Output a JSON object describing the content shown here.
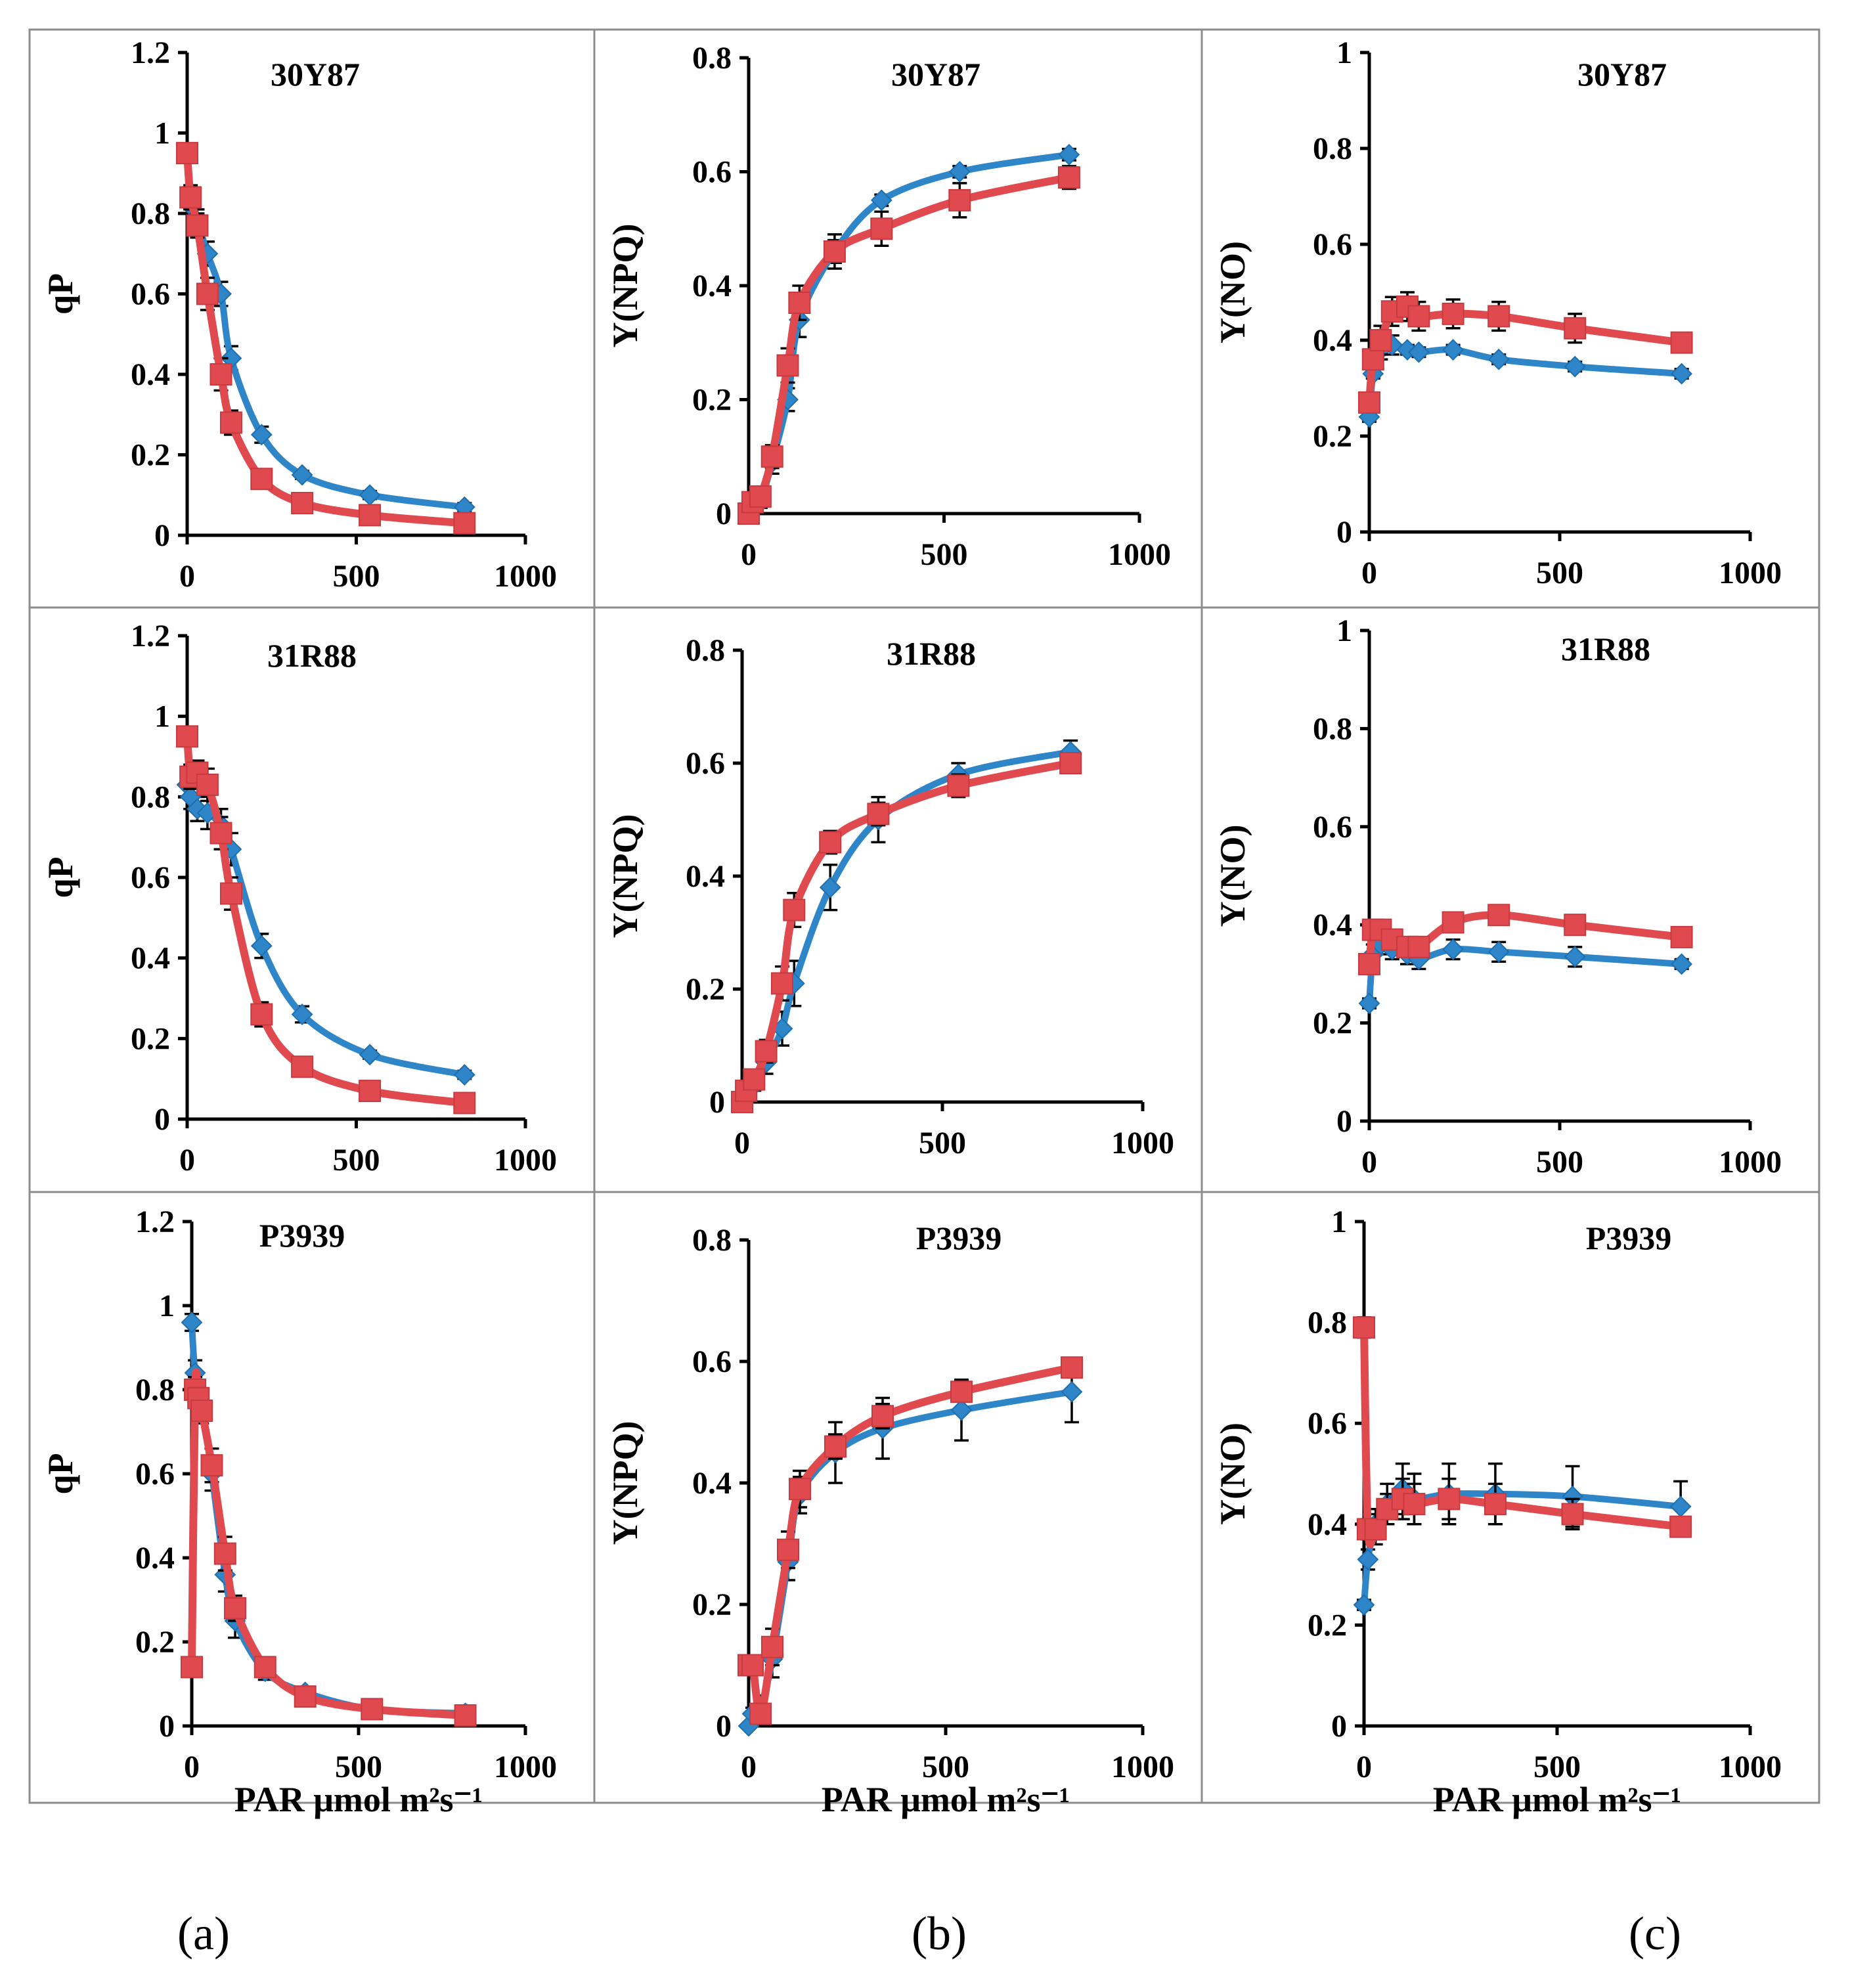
{
  "figure_labels": [
    "(a)",
    "(b)",
    "(c)"
  ],
  "colors": {
    "series_blue": "#2e86c9",
    "series_red": "#e04a4e"
  },
  "chart_data": [
    {
      "type": "line",
      "title": "30Y87",
      "ylabel": "qP",
      "xlabel": "",
      "xlim": [
        0,
        1000
      ],
      "xticks": [
        0,
        500,
        1000
      ],
      "ylim": [
        0,
        1.2
      ],
      "yticks": [
        "0",
        "0.2",
        "0.4",
        "0.6",
        "0.8",
        "1",
        "1.2"
      ],
      "series": [
        {
          "name": "blue",
          "x": [
            0,
            10,
            30,
            60,
            100,
            130,
            220,
            340,
            540,
            820
          ],
          "y": [
            0.95,
            0.82,
            0.78,
            0.7,
            0.6,
            0.44,
            0.25,
            0.15,
            0.1,
            0.07
          ],
          "err": [
            0.02,
            0.02,
            0.03,
            0.03,
            0.03,
            0.03,
            0.02,
            0.01,
            0.01,
            0.01
          ]
        },
        {
          "name": "red",
          "x": [
            0,
            10,
            30,
            60,
            100,
            130,
            220,
            340,
            540,
            820
          ],
          "y": [
            0.95,
            0.84,
            0.77,
            0.6,
            0.4,
            0.28,
            0.14,
            0.08,
            0.05,
            0.03
          ],
          "err": [
            0.02,
            0.03,
            0.03,
            0.04,
            0.04,
            0.03,
            0.02,
            0.01,
            0.01,
            0.01
          ]
        }
      ]
    },
    {
      "type": "line",
      "title": "30Y87",
      "ylabel": "Y(NPQ)",
      "xlabel": "",
      "xlim": [
        0,
        1000
      ],
      "xticks": [
        0,
        500,
        1000
      ],
      "ylim": [
        0,
        0.8
      ],
      "yticks": [
        "0",
        "0.2",
        "0.4",
        "0.6",
        "0.8"
      ],
      "series": [
        {
          "name": "blue",
          "x": [
            0,
            10,
            30,
            60,
            100,
            130,
            220,
            340,
            540,
            820
          ],
          "y": [
            0.0,
            0.01,
            0.02,
            0.09,
            0.2,
            0.34,
            0.46,
            0.55,
            0.6,
            0.63
          ],
          "err": [
            0.0,
            0.01,
            0.01,
            0.02,
            0.02,
            0.03,
            0.02,
            0.01,
            0.01,
            0.01
          ]
        },
        {
          "name": "red",
          "x": [
            0,
            10,
            30,
            60,
            100,
            130,
            220,
            340,
            540,
            820
          ],
          "y": [
            0.0,
            0.02,
            0.03,
            0.1,
            0.26,
            0.37,
            0.46,
            0.5,
            0.55,
            0.59
          ],
          "err": [
            0.0,
            0.01,
            0.01,
            0.02,
            0.03,
            0.03,
            0.03,
            0.03,
            0.03,
            0.02
          ]
        }
      ]
    },
    {
      "type": "line",
      "title": "30Y87",
      "ylabel": "Y(NO)",
      "xlabel": "",
      "xlim": [
        0,
        1000
      ],
      "xticks": [
        0,
        500,
        1000
      ],
      "ylim": [
        0,
        1
      ],
      "yticks": [
        "0",
        "0.2",
        "0.4",
        "0.6",
        "0.8",
        "1"
      ],
      "series": [
        {
          "name": "blue",
          "x": [
            0,
            10,
            30,
            60,
            100,
            130,
            220,
            340,
            540,
            820
          ],
          "y": [
            0.24,
            0.33,
            0.38,
            0.39,
            0.38,
            0.375,
            0.38,
            0.36,
            0.345,
            0.33
          ],
          "err": [
            0.01,
            0.01,
            0.02,
            0.02,
            0.01,
            0.01,
            0.01,
            0.01,
            0.01,
            0.01
          ]
        },
        {
          "name": "red",
          "x": [
            0,
            10,
            30,
            60,
            100,
            130,
            220,
            340,
            540,
            820
          ],
          "y": [
            0.27,
            0.36,
            0.4,
            0.46,
            0.47,
            0.45,
            0.455,
            0.45,
            0.425,
            0.395
          ],
          "err": [
            0.02,
            0.02,
            0.03,
            0.03,
            0.03,
            0.03,
            0.03,
            0.03,
            0.03,
            0.02
          ]
        }
      ]
    },
    {
      "type": "line",
      "title": "31R88",
      "ylabel": "qP",
      "xlabel": "",
      "xlim": [
        0,
        1000
      ],
      "xticks": [
        0,
        500,
        1000
      ],
      "ylim": [
        0,
        1.2
      ],
      "yticks": [
        "0",
        "0.2",
        "0.4",
        "0.6",
        "0.8",
        "1",
        "1.2"
      ],
      "series": [
        {
          "name": "blue",
          "x": [
            0,
            10,
            30,
            60,
            100,
            130,
            220,
            340,
            540,
            820
          ],
          "y": [
            0.83,
            0.8,
            0.77,
            0.76,
            0.73,
            0.67,
            0.43,
            0.26,
            0.16,
            0.11
          ],
          "err": [
            0.03,
            0.03,
            0.03,
            0.04,
            0.04,
            0.04,
            0.03,
            0.02,
            0.01,
            0.01
          ]
        },
        {
          "name": "red",
          "x": [
            0,
            10,
            30,
            60,
            100,
            130,
            220,
            340,
            540,
            820
          ],
          "y": [
            0.95,
            0.85,
            0.86,
            0.83,
            0.71,
            0.56,
            0.26,
            0.13,
            0.07,
            0.04
          ],
          "err": [
            0.02,
            0.03,
            0.03,
            0.04,
            0.04,
            0.04,
            0.03,
            0.02,
            0.01,
            0.01
          ]
        }
      ]
    },
    {
      "type": "line",
      "title": "31R88",
      "ylabel": "Y(NPQ)",
      "xlabel": "",
      "xlim": [
        0,
        1000
      ],
      "xticks": [
        0,
        500,
        1000
      ],
      "ylim": [
        0,
        0.8
      ],
      "yticks": [
        "0",
        "0.2",
        "0.4",
        "0.6",
        "0.8"
      ],
      "series": [
        {
          "name": "blue",
          "x": [
            0,
            10,
            30,
            60,
            100,
            130,
            220,
            340,
            540,
            820
          ],
          "y": [
            0.0,
            0.01,
            0.03,
            0.07,
            0.13,
            0.21,
            0.38,
            0.5,
            0.58,
            0.62
          ],
          "err": [
            0.0,
            0.01,
            0.01,
            0.02,
            0.03,
            0.04,
            0.04,
            0.04,
            0.02,
            0.02
          ]
        },
        {
          "name": "red",
          "x": [
            0,
            10,
            30,
            60,
            100,
            130,
            220,
            340,
            540,
            820
          ],
          "y": [
            0.0,
            0.02,
            0.04,
            0.09,
            0.21,
            0.34,
            0.46,
            0.51,
            0.56,
            0.6
          ],
          "err": [
            0.0,
            0.01,
            0.01,
            0.02,
            0.03,
            0.03,
            0.02,
            0.02,
            0.02,
            0.01
          ]
        }
      ]
    },
    {
      "type": "line",
      "title": "31R88",
      "ylabel": "Y(NO)",
      "xlabel": "",
      "xlim": [
        0,
        1000
      ],
      "xticks": [
        0,
        500,
        1000
      ],
      "ylim": [
        0,
        1
      ],
      "yticks": [
        "0",
        "0.2",
        "0.4",
        "0.6",
        "0.8",
        "1"
      ],
      "series": [
        {
          "name": "blue",
          "x": [
            0,
            10,
            30,
            60,
            100,
            130,
            220,
            340,
            540,
            820
          ],
          "y": [
            0.24,
            0.34,
            0.36,
            0.35,
            0.34,
            0.33,
            0.35,
            0.345,
            0.335,
            0.32
          ],
          "err": [
            0.01,
            0.02,
            0.02,
            0.02,
            0.02,
            0.02,
            0.02,
            0.02,
            0.02,
            0.01
          ]
        },
        {
          "name": "red",
          "x": [
            0,
            10,
            30,
            60,
            100,
            130,
            220,
            340,
            540,
            820
          ],
          "y": [
            0.32,
            0.39,
            0.39,
            0.37,
            0.355,
            0.355,
            0.405,
            0.42,
            0.4,
            0.375
          ],
          "err": [
            0.02,
            0.02,
            0.02,
            0.02,
            0.02,
            0.02,
            0.02,
            0.02,
            0.02,
            0.01
          ]
        }
      ]
    },
    {
      "type": "line",
      "title": "P3939",
      "ylabel": "qP",
      "xlabel": "PAR μmol m²s⁻¹",
      "xlim": [
        0,
        1000
      ],
      "xticks": [
        0,
        500,
        1000
      ],
      "ylim": [
        0,
        1.2
      ],
      "yticks": [
        "0",
        "0.2",
        "0.4",
        "0.6",
        "0.8",
        "1",
        "1.2"
      ],
      "series": [
        {
          "name": "blue",
          "x": [
            0,
            10,
            30,
            60,
            100,
            130,
            220,
            340,
            540,
            820
          ],
          "y": [
            0.96,
            0.84,
            0.77,
            0.6,
            0.36,
            0.25,
            0.13,
            0.08,
            0.04,
            0.03
          ],
          "err": [
            0.02,
            0.03,
            0.03,
            0.04,
            0.04,
            0.04,
            0.02,
            0.01,
            0.01,
            0.01
          ]
        },
        {
          "name": "red",
          "x": [
            0,
            10,
            20,
            30,
            60,
            100,
            130,
            220,
            340,
            540,
            820
          ],
          "y": [
            0.14,
            0.8,
            0.78,
            0.75,
            0.62,
            0.41,
            0.28,
            0.14,
            0.07,
            0.04,
            0.025
          ],
          "err": [
            0.01,
            0.03,
            0.03,
            0.03,
            0.04,
            0.04,
            0.03,
            0.02,
            0.01,
            0.01,
            0.01
          ]
        }
      ]
    },
    {
      "type": "line",
      "title": "P3939",
      "ylabel": "Y(NPQ)",
      "xlabel": "PAR μmol m²s⁻¹",
      "xlim": [
        0,
        1000
      ],
      "xticks": [
        0,
        500,
        1000
      ],
      "ylim": [
        0,
        0.8
      ],
      "yticks": [
        "0",
        "0.2",
        "0.4",
        "0.6",
        "0.8"
      ],
      "series": [
        {
          "name": "blue",
          "x": [
            0,
            10,
            30,
            60,
            100,
            130,
            220,
            340,
            540,
            820
          ],
          "y": [
            0.0,
            0.02,
            0.03,
            0.11,
            0.27,
            0.38,
            0.45,
            0.49,
            0.52,
            0.55
          ],
          "err": [
            0.0,
            0.01,
            0.02,
            0.03,
            0.03,
            0.03,
            0.05,
            0.05,
            0.05,
            0.05
          ]
        },
        {
          "name": "red",
          "x": [
            0,
            10,
            30,
            60,
            100,
            130,
            220,
            340,
            540,
            820
          ],
          "y": [
            0.1,
            0.1,
            0.02,
            0.13,
            0.29,
            0.39,
            0.46,
            0.51,
            0.55,
            0.59
          ],
          "err": [
            0.01,
            0.01,
            0.01,
            0.03,
            0.03,
            0.03,
            0.02,
            0.02,
            0.01,
            0.01
          ]
        }
      ]
    },
    {
      "type": "line",
      "title": "P3939",
      "ylabel": "Y(NO)",
      "xlabel": "PAR μmol m²s⁻¹",
      "xlim": [
        0,
        1000
      ],
      "xticks": [
        0,
        500,
        1000
      ],
      "ylim": [
        0,
        1
      ],
      "yticks": [
        "0",
        "0.2",
        "0.4",
        "0.6",
        "0.8",
        "1"
      ],
      "series": [
        {
          "name": "blue",
          "x": [
            0,
            10,
            30,
            60,
            100,
            130,
            220,
            340,
            540,
            820
          ],
          "y": [
            0.24,
            0.33,
            0.4,
            0.44,
            0.47,
            0.45,
            0.46,
            0.46,
            0.455,
            0.435
          ],
          "err": [
            0.01,
            0.02,
            0.03,
            0.04,
            0.05,
            0.05,
            0.06,
            0.06,
            0.06,
            0.05
          ]
        },
        {
          "name": "red",
          "x": [
            0,
            10,
            30,
            60,
            100,
            130,
            220,
            340,
            540,
            820
          ],
          "y": [
            0.79,
            0.39,
            0.39,
            0.43,
            0.45,
            0.44,
            0.45,
            0.44,
            0.42,
            0.395
          ],
          "err": [
            0.02,
            0.02,
            0.03,
            0.03,
            0.04,
            0.04,
            0.04,
            0.04,
            0.03,
            0.01
          ]
        }
      ]
    }
  ]
}
